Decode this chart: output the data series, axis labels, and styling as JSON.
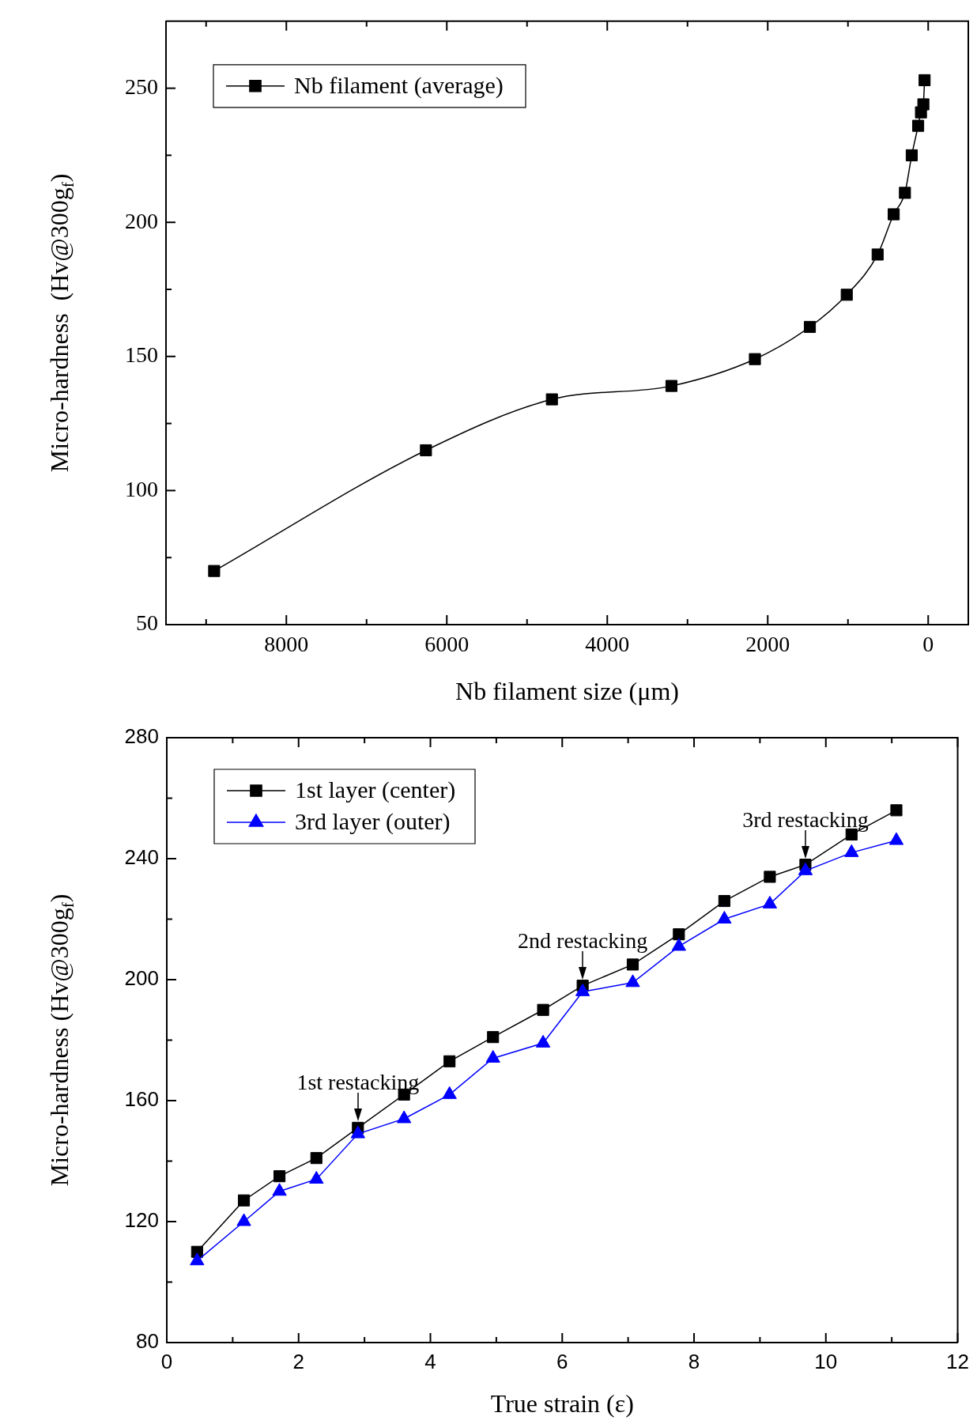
{
  "chart_data": [
    {
      "type": "line",
      "xlabel": "Nb filament size (μm)",
      "ylabel": "Micro-hardness  (Hv@300g$_{f}$)",
      "legend": "top left",
      "grid": false,
      "marker": "square",
      "xlim": [
        9500,
        -500
      ],
      "ylim": [
        50,
        275
      ],
      "xticks": [
        {
          "value": 9000,
          "label": null
        },
        8000,
        {
          "value": 7000,
          "label": null
        },
        6000,
        {
          "value": 5000,
          "label": null
        },
        4000,
        {
          "value": 3000,
          "label": null
        },
        2000,
        {
          "value": 1000,
          "label": null
        },
        0
      ],
      "yticks": [
        50,
        {
          "value": 75,
          "label": null
        },
        100,
        {
          "value": 125,
          "label": null
        },
        150,
        {
          "value": 175,
          "label": null
        },
        200,
        {
          "value": 225,
          "label": null
        },
        250
      ],
      "series": [
        {
          "name": "Nb filament (average)",
          "color": "#000000",
          "x": [
            8900,
            6260,
            4690,
            3200,
            2160,
            1475,
            1015,
            630,
            430,
            290,
            205,
            125,
            90,
            60,
            45
          ],
          "values": [
            70,
            115,
            134,
            139,
            149,
            161,
            173,
            188,
            203,
            211,
            225,
            236,
            241,
            244,
            253
          ]
        }
      ]
    },
    {
      "type": "line",
      "xlabel": "True strain (ε)",
      "ylabel": "Micro-hardness (Hv@300g$_{f}$)",
      "legend": "top left",
      "grid": false,
      "xlim": [
        0,
        12
      ],
      "ylim": [
        80,
        280
      ],
      "xticks": [
        0,
        {
          "value": 1,
          "label": null
        },
        2,
        {
          "value": 3,
          "label": null
        },
        4,
        {
          "value": 5,
          "label": null
        },
        6,
        {
          "value": 7,
          "label": null
        },
        8,
        {
          "value": 9,
          "label": null
        },
        10,
        {
          "value": 11,
          "label": null
        },
        12
      ],
      "yticks": [
        80,
        {
          "value": 100,
          "label": null
        },
        120,
        {
          "value": 140,
          "label": null
        },
        160,
        {
          "value": 180,
          "label": null
        },
        200,
        {
          "value": 220,
          "label": null
        },
        240,
        {
          "value": 260,
          "label": null
        },
        280
      ],
      "x": [
        0.46,
        1.17,
        1.71,
        2.27,
        2.9,
        3.6,
        4.29,
        4.95,
        5.71,
        6.31,
        7.07,
        7.77,
        8.46,
        9.15,
        9.69,
        10.39,
        11.07
      ],
      "series": [
        {
          "name": "1st layer (center)",
          "color": "#000000",
          "marker": "square",
          "values": [
            110,
            127,
            135,
            141,
            151,
            162,
            173,
            181,
            190,
            198,
            205,
            215,
            226,
            234,
            238,
            248,
            256
          ]
        },
        {
          "name": "3rd layer (outer)",
          "color": "#0000ff",
          "marker": "triangle",
          "values": [
            107,
            120,
            130,
            134,
            149,
            154,
            162,
            174,
            179,
            196,
            199,
            211,
            220,
            225,
            236,
            242,
            246
          ]
        }
      ],
      "annotations": [
        {
          "text": "1st restacking",
          "x": 2.9,
          "y": 151
        },
        {
          "text": "2nd restacking",
          "x": 6.31,
          "y": 198
        },
        {
          "text": "3rd restacking",
          "x": 9.69,
          "y": 238
        }
      ]
    }
  ]
}
